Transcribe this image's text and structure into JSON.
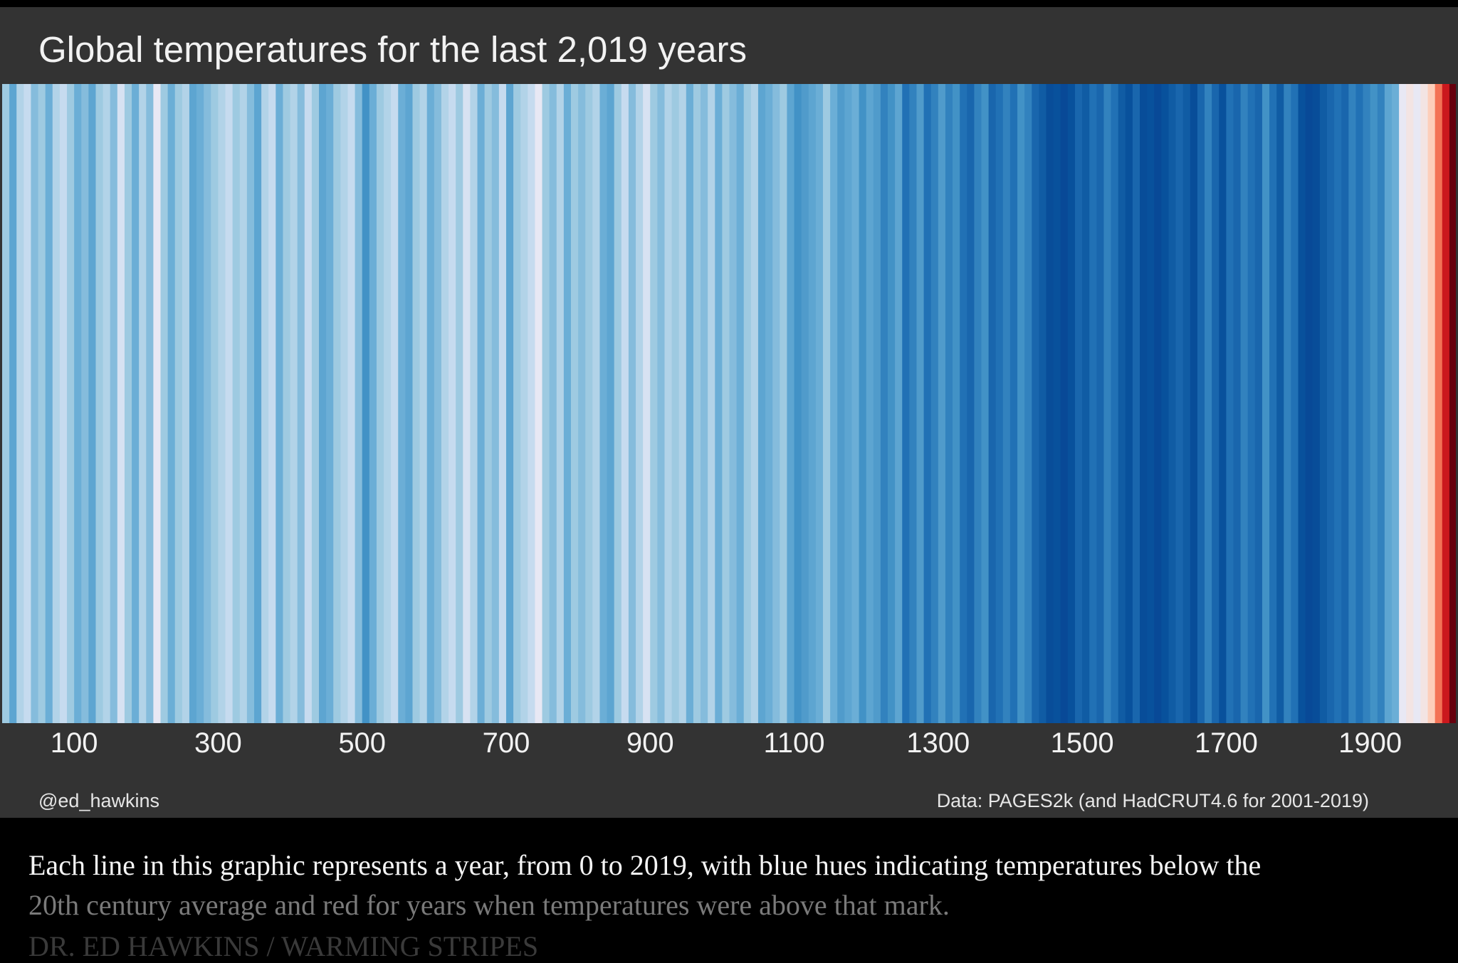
{
  "caption": {
    "line1": "Each line in this graphic represents a year, from 0 to 2019, with blue hues indicating temperatures below the",
    "line2": "20th century average and red for years when temperatures were above that mark.",
    "line3": "DR. ED HAWKINS / WARMING STRIPES"
  },
  "chart_data": {
    "type": "heatmap",
    "title": "Global temperatures for the last 2,019 years",
    "xlabel": "",
    "ylabel": "",
    "xlim": [
      0,
      2019
    ],
    "xticks": [
      "100",
      "300",
      "500",
      "700",
      "900",
      "1100",
      "1300",
      "1500",
      "1700",
      "1900"
    ],
    "credit_left": "@ed_hawkins",
    "credit_right": "Data: PAGES2k (and HadCRUT4.6 for 2001-2019)",
    "bin_years": 10,
    "start_year": 0,
    "values": [
      -0.2,
      -0.35,
      -0.15,
      -0.1,
      -0.25,
      -0.2,
      -0.3,
      -0.15,
      -0.1,
      -0.2,
      -0.3,
      -0.25,
      -0.35,
      -0.2,
      -0.15,
      -0.25,
      -0.05,
      -0.2,
      -0.3,
      -0.15,
      -0.25,
      0.0,
      -0.2,
      -0.3,
      -0.2,
      -0.15,
      -0.35,
      -0.3,
      -0.25,
      -0.2,
      -0.15,
      -0.1,
      -0.2,
      -0.15,
      -0.25,
      -0.35,
      -0.15,
      -0.1,
      -0.3,
      -0.2,
      -0.15,
      -0.25,
      -0.1,
      -0.2,
      -0.35,
      -0.3,
      -0.2,
      -0.15,
      -0.1,
      -0.25,
      -0.45,
      -0.3,
      -0.2,
      -0.15,
      -0.1,
      -0.3,
      -0.35,
      -0.2,
      -0.15,
      -0.3,
      -0.25,
      -0.15,
      -0.1,
      -0.2,
      -0.05,
      -0.15,
      -0.3,
      -0.2,
      -0.25,
      -0.1,
      -0.35,
      -0.2,
      -0.15,
      -0.1,
      0.0,
      -0.2,
      -0.25,
      -0.15,
      -0.3,
      -0.2,
      -0.25,
      -0.2,
      -0.15,
      -0.3,
      -0.35,
      -0.2,
      -0.1,
      -0.25,
      -0.15,
      -0.05,
      -0.2,
      -0.25,
      -0.15,
      -0.2,
      -0.15,
      -0.3,
      -0.2,
      -0.25,
      -0.15,
      -0.3,
      -0.2,
      -0.25,
      -0.3,
      -0.2,
      -0.15,
      -0.35,
      -0.3,
      -0.25,
      -0.2,
      -0.35,
      -0.45,
      -0.4,
      -0.35,
      -0.3,
      -0.2,
      -0.3,
      -0.4,
      -0.35,
      -0.3,
      -0.45,
      -0.35,
      -0.4,
      -0.5,
      -0.45,
      -0.35,
      -0.55,
      -0.5,
      -0.4,
      -0.55,
      -0.5,
      -0.4,
      -0.5,
      -0.45,
      -0.55,
      -0.6,
      -0.5,
      -0.45,
      -0.6,
      -0.55,
      -0.5,
      -0.55,
      -0.45,
      -0.5,
      -0.6,
      -0.65,
      -0.75,
      -0.7,
      -0.8,
      -0.7,
      -0.6,
      -0.65,
      -0.55,
      -0.6,
      -0.5,
      -0.55,
      -0.65,
      -0.7,
      -0.6,
      -0.75,
      -0.7,
      -0.8,
      -0.7,
      -0.65,
      -0.6,
      -0.65,
      -0.75,
      -0.6,
      -0.5,
      -0.6,
      -0.7,
      -0.55,
      -0.6,
      -0.5,
      -0.55,
      -0.6,
      -0.45,
      -0.55,
      -0.65,
      -0.5,
      -0.55,
      -0.7,
      -0.8,
      -0.75,
      -0.65,
      -0.6,
      -0.55,
      -0.6,
      -0.5,
      -0.55,
      -0.5,
      -0.45,
      -0.5,
      -0.35,
      -0.3,
      0.0,
      0.05,
      0.0,
      0.05,
      0.2,
      0.45,
      0.7,
      0.9
    ]
  }
}
